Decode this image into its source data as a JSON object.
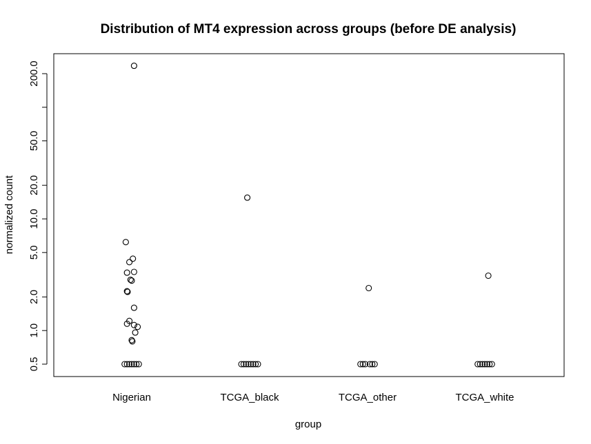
{
  "chart_data": {
    "type": "scatter",
    "title": "Distribution of MT4 expression across groups (before DE analysis)",
    "xlabel": "group",
    "ylabel": "normalized count",
    "y_scale": "log",
    "ylim": [
      0.42,
      260
    ],
    "categories": [
      "Nigerian",
      "TCGA_black",
      "TCGA_other",
      "TCGA_white"
    ],
    "y_ticks": [
      {
        "value": 0.5,
        "label": "0.5"
      },
      {
        "value": 1.0,
        "label": "1.0"
      },
      {
        "value": 2.0,
        "label": "2.0"
      },
      {
        "value": 5.0,
        "label": "5.0"
      },
      {
        "value": 10.0,
        "label": "10.0"
      },
      {
        "value": 20.0,
        "label": "20.0"
      },
      {
        "value": 50.0,
        "label": "50.0"
      },
      {
        "value": 100.0,
        "label": ""
      },
      {
        "value": 200.0,
        "label": "200.0"
      }
    ],
    "series": [
      {
        "category": "Nigerian",
        "points": [
          {
            "jitter": 0.02,
            "y": 235
          },
          {
            "jitter": -0.05,
            "y": 6.2
          },
          {
            "jitter": 0.01,
            "y": 4.4
          },
          {
            "jitter": -0.02,
            "y": 4.1
          },
          {
            "jitter": -0.04,
            "y": 3.3
          },
          {
            "jitter": 0.02,
            "y": 3.35
          },
          {
            "jitter": -0.01,
            "y": 2.85
          },
          {
            "jitter": 0.0,
            "y": 2.8
          },
          {
            "jitter": -0.04,
            "y": 2.25
          },
          {
            "jitter": -0.035,
            "y": 2.22
          },
          {
            "jitter": 0.02,
            "y": 1.6
          },
          {
            "jitter": -0.02,
            "y": 1.22
          },
          {
            "jitter": -0.04,
            "y": 1.15
          },
          {
            "jitter": 0.02,
            "y": 1.12
          },
          {
            "jitter": 0.05,
            "y": 1.08
          },
          {
            "jitter": 0.03,
            "y": 0.96
          },
          {
            "jitter": 0.0,
            "y": 0.82
          },
          {
            "jitter": 0.005,
            "y": 0.8
          },
          {
            "jitter": -0.06,
            "y": 0.5
          },
          {
            "jitter": -0.04,
            "y": 0.5
          },
          {
            "jitter": -0.02,
            "y": 0.5
          },
          {
            "jitter": 0.0,
            "y": 0.5
          },
          {
            "jitter": 0.02,
            "y": 0.5
          },
          {
            "jitter": 0.04,
            "y": 0.5
          },
          {
            "jitter": 0.06,
            "y": 0.5
          }
        ]
      },
      {
        "category": "TCGA_black",
        "points": [
          {
            "jitter": -0.02,
            "y": 15.5
          },
          {
            "jitter": -0.07,
            "y": 0.5
          },
          {
            "jitter": -0.05,
            "y": 0.5
          },
          {
            "jitter": -0.03,
            "y": 0.5
          },
          {
            "jitter": -0.01,
            "y": 0.5
          },
          {
            "jitter": 0.01,
            "y": 0.5
          },
          {
            "jitter": 0.03,
            "y": 0.5
          },
          {
            "jitter": 0.05,
            "y": 0.5
          },
          {
            "jitter": 0.07,
            "y": 0.5
          }
        ]
      },
      {
        "category": "TCGA_other",
        "points": [
          {
            "jitter": 0.01,
            "y": 2.4
          },
          {
            "jitter": -0.06,
            "y": 0.5
          },
          {
            "jitter": -0.04,
            "y": 0.5
          },
          {
            "jitter": -0.02,
            "y": 0.5
          },
          {
            "jitter": 0.02,
            "y": 0.5
          },
          {
            "jitter": 0.04,
            "y": 0.5
          },
          {
            "jitter": 0.06,
            "y": 0.5
          }
        ]
      },
      {
        "category": "TCGA_white",
        "points": [
          {
            "jitter": 0.03,
            "y": 3.1
          },
          {
            "jitter": -0.06,
            "y": 0.5
          },
          {
            "jitter": -0.04,
            "y": 0.5
          },
          {
            "jitter": -0.02,
            "y": 0.5
          },
          {
            "jitter": 0.0,
            "y": 0.5
          },
          {
            "jitter": 0.02,
            "y": 0.5
          },
          {
            "jitter": 0.04,
            "y": 0.5
          },
          {
            "jitter": 0.06,
            "y": 0.5
          }
        ]
      }
    ],
    "marker": "open-circle",
    "grid": false,
    "legend": "none",
    "color": "#000000"
  }
}
